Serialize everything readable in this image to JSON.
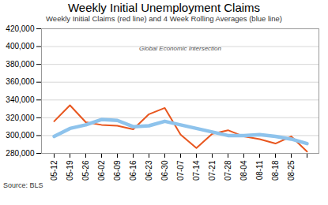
{
  "chart_data": {
    "type": "line",
    "title": "Weekly Initial Unemployment Claims",
    "subtitle": "Weekly Initial Claims (red line) and 4 Week Rolling Averages (blue line)",
    "source": "Source: BLS",
    "annotations": [
      "Global Economic Intersection"
    ],
    "categories": [
      "05-12",
      "05-19",
      "05-26",
      "06-02",
      "06-09",
      "06-16",
      "06-23",
      "06-30",
      "07-07",
      "07-14",
      "07-21",
      "07-28",
      "08-04",
      "08-11",
      "08-18",
      "08-25",
      null
    ],
    "series": [
      {
        "name": "Weekly Initial Claims",
        "color": "#e8561e",
        "values": [
          316000,
          334000,
          315000,
          312000,
          311000,
          307000,
          324000,
          331000,
          301000,
          286000,
          302000,
          306000,
          299000,
          296000,
          291000,
          299000,
          282000
        ]
      },
      {
        "name": "4 Week Rolling Averages",
        "color": "#8ec3ec",
        "values": [
          299000,
          308000,
          312000,
          318000,
          317000,
          310000,
          311000,
          316000,
          312000,
          308000,
          304000,
          300000,
          300000,
          301000,
          299000,
          296000,
          291000
        ]
      }
    ],
    "ylim": [
      280000,
      420000
    ],
    "yticks": [
      {
        "value": 280000,
        "label": "280,000"
      },
      {
        "value": 300000,
        "label": "300,000"
      },
      {
        "value": 320000,
        "label": "320,000"
      },
      {
        "value": 340000,
        "label": "340,000"
      },
      {
        "value": 360000,
        "label": "360,000"
      },
      {
        "value": 380000,
        "label": "380,000"
      },
      {
        "value": 400000,
        "label": "400,000"
      },
      {
        "value": 420000,
        "label": "420,000"
      }
    ],
    "grid": true
  }
}
